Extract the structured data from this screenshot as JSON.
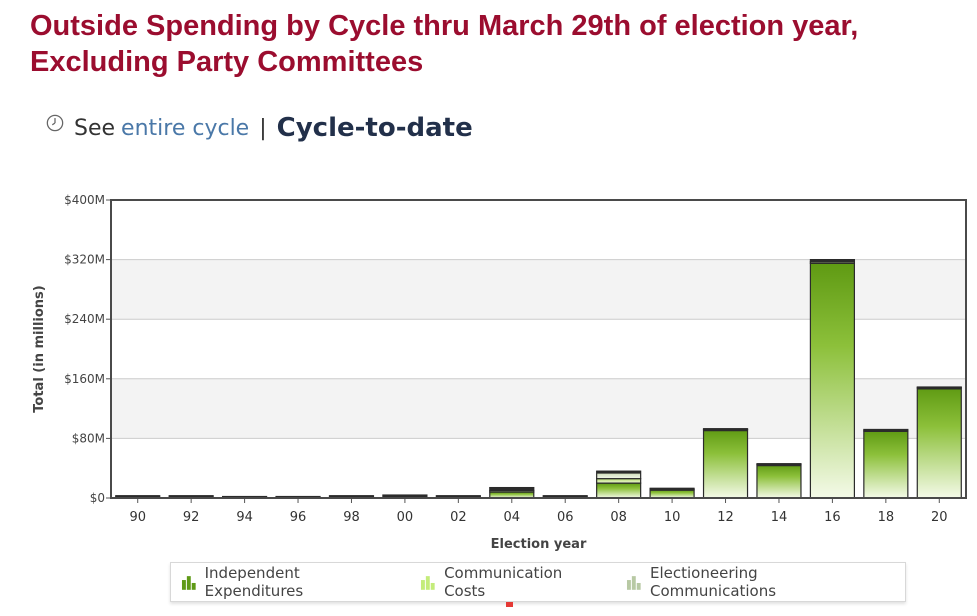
{
  "page": {
    "title": "Outside Spending by Cycle thru March 29th of election year, Excluding Party Committees"
  },
  "cycle_nav": {
    "see_label": "See",
    "entire_cycle_link": "entire cycle",
    "separator": "|",
    "current_label": "Cycle-to-date",
    "icon": "clock-icon"
  },
  "chart_data": {
    "type": "bar",
    "stacked": true,
    "xlabel": "Election year",
    "ylabel": "Total (in millions)",
    "ylim": [
      0,
      400
    ],
    "yticks": [
      0,
      80,
      160,
      240,
      320,
      400
    ],
    "ytick_labels": [
      "$0",
      "$80M",
      "$160M",
      "$240M",
      "$320M",
      "$400M"
    ],
    "grid": true,
    "legend_position": "bottom-center",
    "categories": [
      "90",
      "92",
      "94",
      "96",
      "98",
      "00",
      "02",
      "04",
      "06",
      "08",
      "10",
      "12",
      "14",
      "16",
      "18",
      "20"
    ],
    "series": [
      {
        "name": "Independent Expenditures",
        "color": "#6ea91b",
        "values": [
          3,
          3,
          2,
          2,
          3,
          4,
          3,
          8,
          3,
          20,
          11,
          92,
          45,
          315,
          90,
          148
        ]
      },
      {
        "name": "Communication Costs",
        "color": "#bfe080",
        "values": [
          0,
          0,
          0,
          0,
          0,
          0,
          0,
          2,
          0,
          6,
          2,
          1,
          1,
          2,
          2,
          1
        ]
      },
      {
        "name": "Electioneering Communications",
        "color": "#c8d8b0",
        "values": [
          0,
          0,
          0,
          0,
          0,
          0,
          0,
          4,
          0,
          10,
          0,
          0,
          0,
          3,
          0,
          0
        ]
      }
    ]
  },
  "legend": {
    "items": [
      {
        "label": "Independent Expenditures",
        "icon": "bar-chart-icon",
        "color": "#5f9a17"
      },
      {
        "label": "Communication Costs",
        "icon": "bar-chart-icon",
        "color": "#c4ec7a"
      },
      {
        "label": "Electioneering Communications",
        "icon": "bar-chart-icon",
        "color": "#b8c9a4"
      }
    ]
  }
}
